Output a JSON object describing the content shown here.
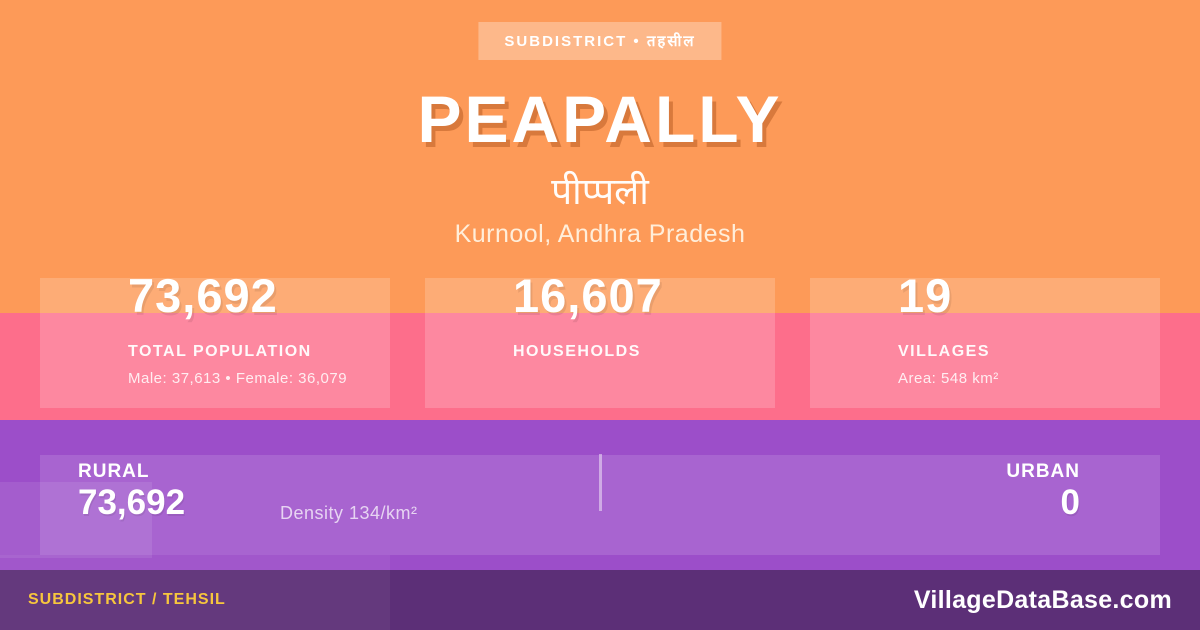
{
  "badge": {
    "label": "SUBDISTRICT • तहसील"
  },
  "header": {
    "title": "PEAPALLY",
    "title_native": "पीप्पली",
    "location": "Kurnool, Andhra Pradesh"
  },
  "stats": [
    {
      "value": "73,692",
      "label": "TOTAL POPULATION",
      "detail": "Male: 37,613 • Female: 36,079"
    },
    {
      "value": "16,607",
      "label": "HOUSEHOLDS",
      "detail": ""
    },
    {
      "value": "19",
      "label": "VILLAGES",
      "detail": "Area: 548 km²"
    }
  ],
  "split": {
    "rural_label": "RURAL",
    "rural_value": "73,692",
    "density": "Density 134/km²",
    "urban_label": "URBAN",
    "urban_value": "0"
  },
  "footer": {
    "type_label": "SUBDISTRICT / TEHSIL",
    "brand": "VillageDataBase.com"
  },
  "colors": {
    "orange": "#fd9a58",
    "pink": "#fd6e8b",
    "purple": "#9c4ec9",
    "footer": "#5c2f77",
    "yellow": "#f7c63d"
  }
}
